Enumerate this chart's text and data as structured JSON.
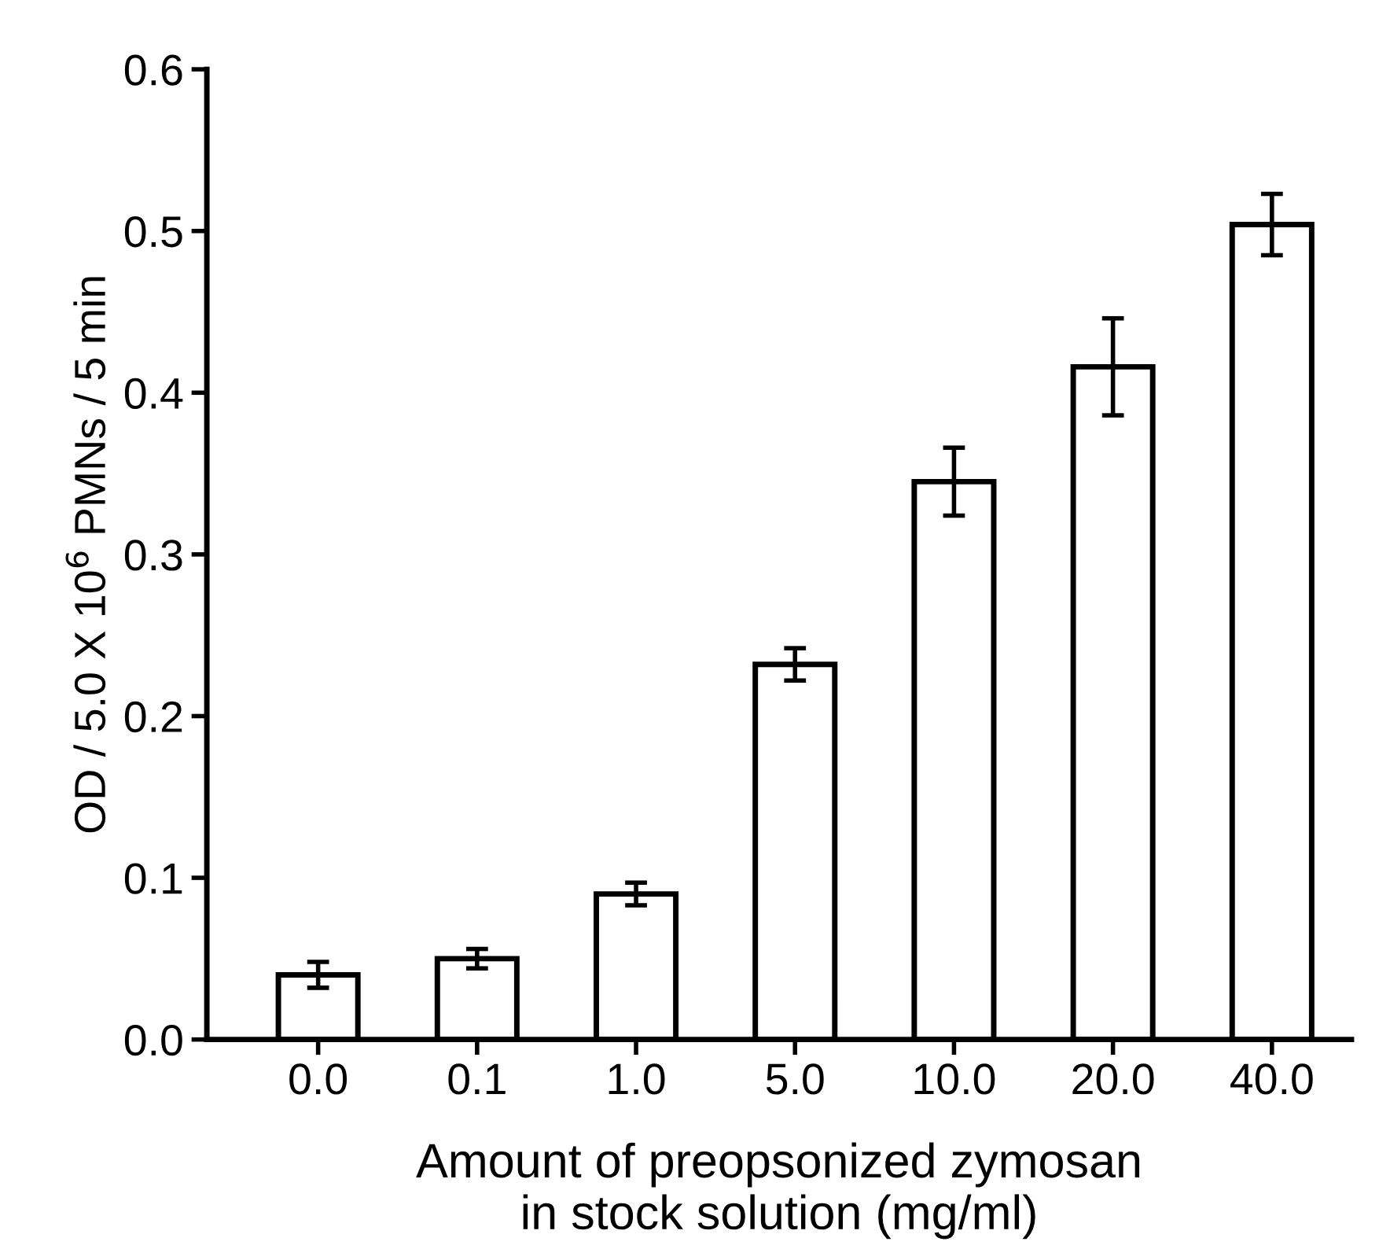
{
  "chart_data": {
    "type": "bar",
    "xlabel": "Amount of preopsonized zymosan\nin stock solution (mg/ml)",
    "ylabel": "OD / 5.0 X 10$^{6}$ PMNs / 5 min",
    "categories": [
      "0.0",
      "0.1",
      "1.0",
      "5.0",
      "10.0",
      "20.0",
      "40.0"
    ],
    "values": [
      0.04,
      0.05,
      0.09,
      0.232,
      0.345,
      0.416,
      0.504
    ],
    "errors": [
      0.008,
      0.006,
      0.007,
      0.01,
      0.021,
      0.03,
      0.019
    ],
    "color": "#ffffff",
    "ylim": [
      0,
      0.6
    ],
    "yticks": [
      {
        "value": 0,
        "label": "0.0"
      },
      0.1,
      0.2,
      0.3,
      0.4,
      0.5,
      0.6
    ],
    "grid": false
  }
}
